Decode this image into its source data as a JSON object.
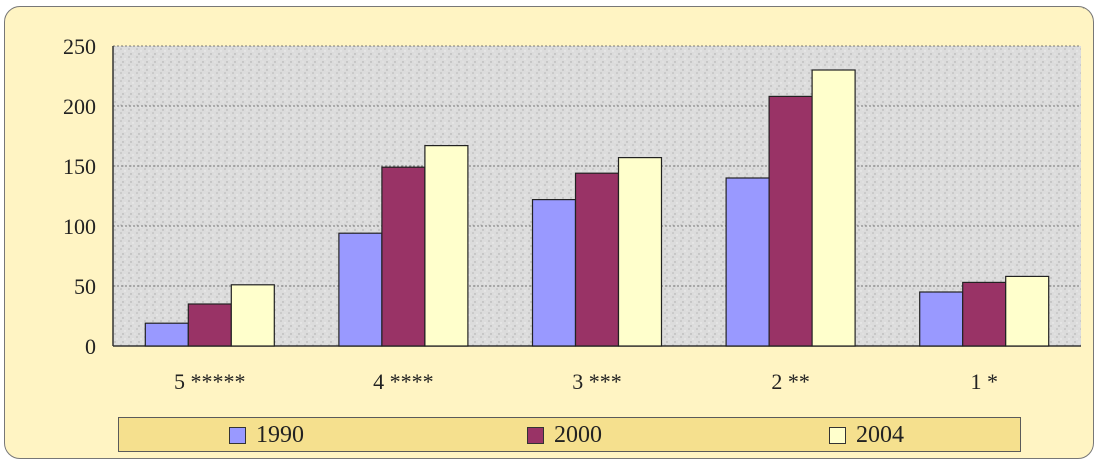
{
  "chart_data": {
    "type": "bar",
    "categories": [
      "5 *****",
      "4 ****",
      "3 ***",
      "2 **",
      "1 *"
    ],
    "series": [
      {
        "name": "1990",
        "values": [
          19,
          94,
          122,
          140,
          45
        ],
        "color": "#9999ff"
      },
      {
        "name": "2000",
        "values": [
          35,
          149,
          144,
          208,
          53
        ],
        "color": "#993366"
      },
      {
        "name": "2004",
        "values": [
          51,
          167,
          157,
          230,
          58
        ],
        "color": "#ffffcc"
      }
    ],
    "ylim": [
      0,
      250
    ],
    "yticks": [
      "0",
      "50",
      "100",
      "150",
      "200",
      "250"
    ],
    "grid": true,
    "legend_position": "bottom",
    "corner_mark": "”"
  }
}
